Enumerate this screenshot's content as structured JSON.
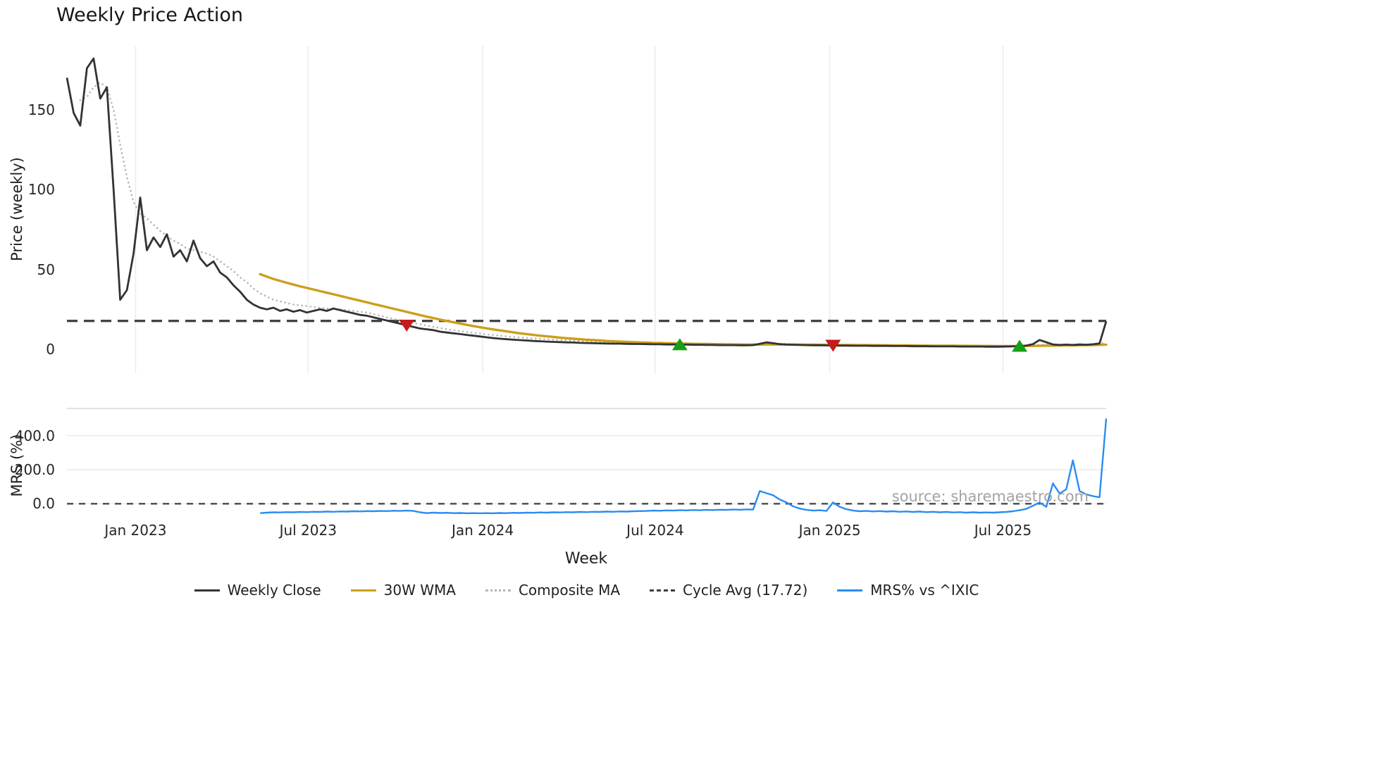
{
  "title": "Weekly Price Action",
  "watermark": "source: sharemaestro.com",
  "axes": {
    "xlabel": "Week"
  },
  "legend": [
    {
      "label": "Weekly Close",
      "color": "#333333",
      "style": "solid"
    },
    {
      "label": "30W WMA",
      "color": "#cc9f1a",
      "style": "solid"
    },
    {
      "label": "Composite MA",
      "color": "#b5b5b5",
      "style": "dotted"
    },
    {
      "label": "Cycle Avg (17.72)",
      "color": "#3d3d3d",
      "style": "dashed"
    },
    {
      "label": "MRS% vs ^IXIC",
      "color": "#2b8cf0",
      "style": "solid"
    }
  ],
  "chart_data": [
    {
      "type": "line",
      "panel": "top",
      "title": "Weekly Price Action",
      "xlabel": "Week",
      "ylabel": "Price (weekly)",
      "ylim": [
        -15,
        190
      ],
      "grid": "vertical",
      "x_unit": "week_index",
      "x_range": [
        0,
        156
      ],
      "x_ticks": [
        {
          "week": 10.3,
          "label": "Jan 2023"
        },
        {
          "week": 36.2,
          "label": "Jul 2023"
        },
        {
          "week": 62.4,
          "label": "Jan 2024"
        },
        {
          "week": 88.3,
          "label": "Jul 2024"
        },
        {
          "week": 114.5,
          "label": "Jan 2025"
        },
        {
          "week": 140.5,
          "label": "Jul 2025"
        }
      ],
      "y_ticks": [
        {
          "value": 150,
          "label": "150"
        },
        {
          "value": 100,
          "label": "100"
        },
        {
          "value": 50,
          "label": "50"
        },
        {
          "value": 0,
          "label": "0"
        }
      ],
      "cycle_avg": 17.72,
      "series": [
        {
          "name": "Weekly Close",
          "color": "#333333",
          "style": "solid",
          "values": [
            170,
            148,
            140,
            176,
            182,
            157,
            164,
            100,
            31,
            37,
            60,
            95,
            62,
            70,
            64,
            72,
            58,
            62,
            55,
            68,
            57,
            52,
            55,
            48,
            45,
            40,
            36,
            31,
            28,
            26,
            25,
            26,
            24,
            25,
            23.5,
            24.5,
            23,
            24,
            25,
            24,
            25.5,
            24.5,
            23.5,
            22.5,
            21.5,
            21,
            20,
            19,
            18,
            17,
            16,
            15,
            14,
            13,
            12.5,
            12,
            11,
            10.5,
            10,
            9.5,
            9,
            8.5,
            8,
            7.5,
            7,
            6.6,
            6.3,
            6,
            5.7,
            5.5,
            5.2,
            5,
            4.8,
            4.6,
            4.5,
            4.3,
            4.2,
            4,
            3.9,
            3.8,
            3.7,
            3.6,
            3.5,
            3.5,
            3.4,
            3.3,
            3.3,
            3.2,
            3.1,
            3.1,
            3,
            3,
            2.9,
            2.9,
            2.8,
            2.8,
            2.7,
            2.7,
            2.6,
            2.6,
            2.6,
            2.5,
            2.5,
            2.6,
            3.4,
            4.3,
            3.8,
            3.2,
            2.9,
            2.8,
            2.7,
            2.6,
            2.5,
            2.5,
            2.4,
            2.4,
            2.3,
            2.3,
            2.2,
            2.2,
            2.2,
            2.1,
            2.1,
            2.1,
            2,
            2,
            2,
            1.9,
            1.9,
            1.9,
            1.8,
            1.8,
            1.8,
            1.8,
            1.7,
            1.7,
            1.7,
            1.7,
            1.6,
            1.6,
            1.6,
            1.7,
            1.8,
            2,
            2.3,
            3.2,
            5.8,
            4.4,
            3,
            2.7,
            2.9,
            2.7,
            3,
            2.8,
            3.1,
            3.6,
            17.5
          ]
        },
        {
          "name": "30W WMA",
          "color": "#cc9f1a",
          "style": "solid",
          "values": [
            null,
            null,
            null,
            null,
            null,
            null,
            null,
            null,
            null,
            null,
            null,
            null,
            null,
            null,
            null,
            null,
            null,
            null,
            null,
            null,
            null,
            null,
            null,
            null,
            null,
            null,
            null,
            null,
            null,
            47,
            45.5,
            44,
            42.8,
            41.6,
            40.5,
            39.4,
            38.4,
            37.4,
            36.4,
            35.4,
            34.4,
            33.4,
            32.4,
            31.4,
            30.4,
            29.4,
            28.4,
            27.4,
            26.4,
            25.4,
            24.4,
            23.4,
            22.4,
            21.4,
            20.4,
            19.5,
            18.6,
            17.7,
            16.9,
            16.1,
            15.3,
            14.5,
            13.8,
            13.1,
            12.4,
            11.8,
            11.2,
            10.6,
            10,
            9.5,
            9,
            8.5,
            8.1,
            7.7,
            7.3,
            6.9,
            6.6,
            6.3,
            6,
            5.7,
            5.5,
            5.2,
            5,
            4.8,
            4.6,
            4.5,
            4.3,
            4.2,
            4,
            3.9,
            3.8,
            3.7,
            3.6,
            3.5,
            3.4,
            3.35,
            3.3,
            3.2,
            3.15,
            3.1,
            3.05,
            3,
            2.95,
            2.95,
            2.95,
            3,
            3,
            3,
            3,
            2.95,
            2.9,
            2.9,
            2.85,
            2.8,
            2.8,
            2.75,
            2.7,
            2.7,
            2.65,
            2.6,
            2.6,
            2.55,
            2.5,
            2.5,
            2.45,
            2.4,
            2.4,
            2.35,
            2.3,
            2.3,
            2.25,
            2.25,
            2.2,
            2.2,
            2.15,
            2.15,
            2.1,
            2.1,
            2.05,
            2.05,
            2,
            2,
            2,
            2,
            2.05,
            2.1,
            2.15,
            2.25,
            2.3,
            2.35,
            2.4,
            2.45,
            2.5,
            2.6,
            2.65,
            2.75,
            2.9
          ]
        },
        {
          "name": "Composite MA",
          "color": "#b5b5b5",
          "style": "dotted",
          "values": [
            null,
            null,
            156,
            158,
            164,
            167,
            164,
            150,
            128,
            108,
            92,
            85,
            82,
            78,
            74,
            71,
            68,
            66,
            63,
            62,
            61,
            60,
            58,
            55,
            52,
            49,
            45,
            42,
            38,
            35,
            33,
            31,
            30,
            29,
            28,
            27.5,
            27,
            26.5,
            26,
            25.5,
            25,
            25,
            24.5,
            24,
            23.5,
            23,
            22,
            21,
            20,
            19,
            18,
            17.2,
            16.4,
            15.6,
            14.8,
            14,
            13.3,
            12.6,
            12,
            11.4,
            10.8,
            10.3,
            9.8,
            9.3,
            8.9,
            8.5,
            8.1,
            7.7,
            7.4,
            7.1,
            6.8,
            6.5,
            6.2,
            6,
            5.8,
            5.6,
            5.4,
            5.2,
            5,
            4.8,
            4.7,
            4.5,
            4.4,
            4.3,
            4.2,
            4.1,
            4,
            3.9,
            3.8,
            3.7,
            3.6,
            3.6,
            3.5,
            3.4,
            3.4,
            3.3,
            3.3,
            3.2,
            3.2,
            3.1,
            3.1,
            3,
            3,
            3,
            3.1,
            3.3,
            3.4,
            3.4,
            3.3,
            3.2,
            3.1,
            3,
            2.9,
            2.9,
            2.8,
            2.8,
            2.7,
            2.7,
            2.6,
            2.6,
            2.6,
            2.5,
            2.5,
            2.5,
            2.4,
            2.4,
            2.4,
            2.3,
            2.3,
            2.3,
            2.2,
            2.2,
            2.2,
            2.2,
            2.1,
            2.1,
            2.1,
            2.1,
            2,
            2,
            2,
            2,
            2.1,
            2.1,
            2.2,
            2.4,
            2.8,
            3,
            3,
            2.9,
            2.9,
            2.9,
            2.9,
            2.9,
            3,
            3.2,
            4.5
          ]
        }
      ],
      "signals": {
        "sell_color": "#c51b1b",
        "buy_color": "#15a015",
        "sell": [
          {
            "week": 51,
            "price": 15
          },
          {
            "week": 115,
            "price": 2.4
          }
        ],
        "buy": [
          {
            "week": 92,
            "price": 2.9
          },
          {
            "week": 143,
            "price": 2
          }
        ]
      }
    },
    {
      "type": "line",
      "panel": "bottom",
      "ylabel": "MRS (%)",
      "ylim": [
        -110,
        560
      ],
      "grid": "horizontal",
      "zero_line": 0,
      "y_ticks": [
        {
          "value": 400,
          "label": "400.0"
        },
        {
          "value": 200,
          "label": "200.0"
        },
        {
          "value": 0,
          "label": "0.0"
        }
      ],
      "series": [
        {
          "name": "MRS% vs ^IXIC",
          "color": "#2b8cf0",
          "style": "solid",
          "values": [
            null,
            null,
            null,
            null,
            null,
            null,
            null,
            null,
            null,
            null,
            null,
            null,
            null,
            null,
            null,
            null,
            null,
            null,
            null,
            null,
            null,
            null,
            null,
            null,
            null,
            null,
            null,
            null,
            null,
            -55,
            -52,
            -50,
            -51,
            -49,
            -50,
            -48,
            -49,
            -47,
            -48,
            -46,
            -47,
            -45,
            -46,
            -44,
            -45,
            -43,
            -44,
            -42,
            -43,
            -41,
            -42,
            -40,
            -42,
            -50,
            -55,
            -52,
            -54,
            -53,
            -55,
            -54,
            -56,
            -55,
            -56,
            -55,
            -56,
            -54,
            -55,
            -53,
            -54,
            -52,
            -53,
            -51,
            -52,
            -50,
            -51,
            -49,
            -50,
            -48,
            -49,
            -47,
            -48,
            -46,
            -47,
            -45,
            -46,
            -44,
            -43,
            -42,
            -40,
            -41,
            -39,
            -40,
            -38,
            -39,
            -37,
            -38,
            -36,
            -37,
            -35,
            -36,
            -34,
            -35,
            -33,
            -34,
            75,
            62,
            50,
            25,
            8,
            -15,
            -28,
            -36,
            -40,
            -38,
            -42,
            8,
            -18,
            -32,
            -40,
            -44,
            -42,
            -45,
            -43,
            -46,
            -44,
            -47,
            -45,
            -48,
            -46,
            -49,
            -47,
            -50,
            -48,
            -51,
            -49,
            -52,
            -50,
            -52,
            -51,
            -52,
            -50,
            -48,
            -44,
            -38,
            -30,
            -12,
            8,
            -18,
            120,
            60,
            85,
            255,
            75,
            55,
            45,
            38,
            500
          ]
        }
      ]
    }
  ]
}
